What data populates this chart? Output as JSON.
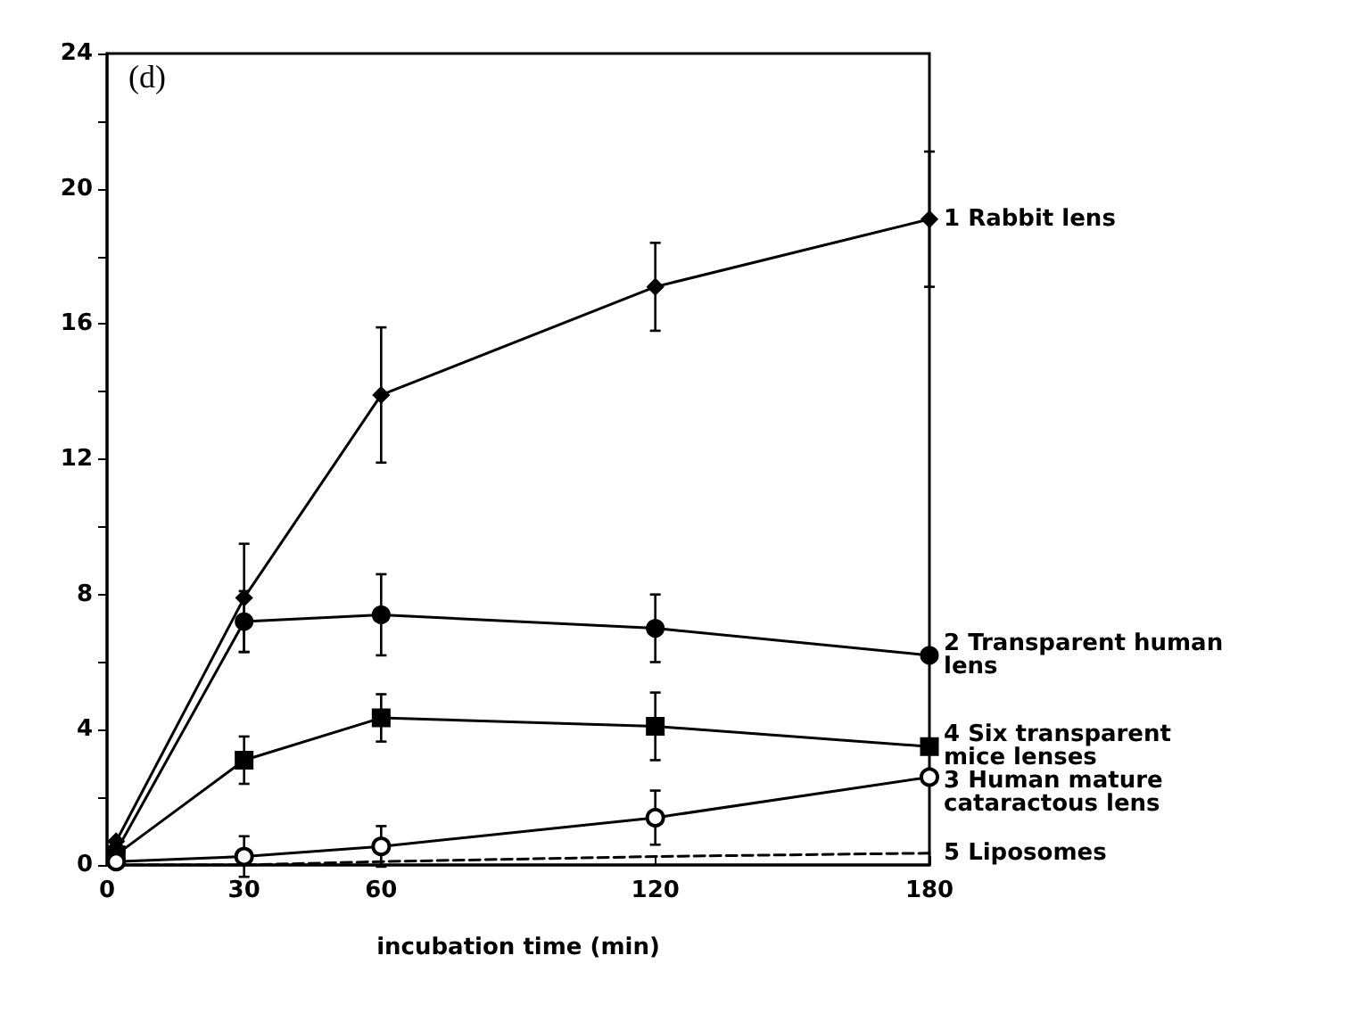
{
  "chart_data": {
    "type": "line",
    "xlabel": "incubation time (min)",
    "annotations": [
      "(d)"
    ],
    "x": [
      2,
      30,
      60,
      120,
      180
    ],
    "series": [
      {
        "name": "1 Rabbit lens",
        "color": "#000000",
        "marker": "diamond",
        "values": [
          0.7,
          7.9,
          13.9,
          17.1,
          19.1
        ],
        "errors": [
          null,
          1.6,
          2,
          1.3,
          2
        ]
      },
      {
        "name": "2 Transparent human lens",
        "color": "#000000",
        "marker": "circle",
        "values": [
          0.4,
          7.2,
          7.4,
          7.0,
          6.2
        ],
        "errors": [
          null,
          0.9,
          1.2,
          1,
          null
        ]
      },
      {
        "name": "4 Six transparent mice lenses",
        "color": "#000000",
        "marker": "square",
        "values": [
          0.3,
          3.1,
          4.35,
          4.1,
          3.5
        ],
        "errors": [
          null,
          0.7,
          0.7,
          1,
          null
        ]
      },
      {
        "name": "3 Human mature cataractous lens",
        "color": "#000000",
        "marker": "emptyCircle",
        "values": [
          0.1,
          0.25,
          0.55,
          1.4,
          2.6
        ],
        "errors": [
          null,
          0.6,
          0.6,
          0.8,
          null
        ]
      },
      {
        "name": "5 Liposomes",
        "color": "#000000",
        "marker": "none",
        "line_style": "dashed",
        "values": [
          0,
          0,
          0.1,
          0.25,
          0.35
        ]
      }
    ],
    "xlim": [
      0,
      180
    ],
    "xticks": [
      0,
      30,
      60,
      120,
      180
    ],
    "ylim": [
      0,
      24
    ],
    "yticks": [
      0,
      {
        "value": 2,
        "label": null
      },
      4,
      {
        "value": 6,
        "label": null
      },
      8,
      {
        "value": 10,
        "label": null
      },
      12,
      {
        "value": 14,
        "label": null
      },
      16,
      {
        "value": 18,
        "label": null
      },
      20,
      {
        "value": 22,
        "label": null
      },
      24
    ],
    "grid": false,
    "legend": false
  }
}
